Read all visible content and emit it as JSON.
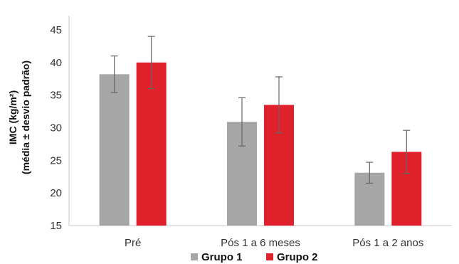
{
  "chart_data": {
    "type": "bar",
    "categories": [
      "Pré",
      "Pós 1 a 6 meses",
      "Pós 1 a 2 anos"
    ],
    "series": [
      {
        "name": "Grupo 1",
        "color": "#a6a6a6",
        "values": [
          38.2,
          30.9,
          23.1
        ],
        "error": [
          2.8,
          3.7,
          1.6
        ]
      },
      {
        "name": "Grupo 2",
        "color": "#e0202a",
        "values": [
          40.0,
          33.5,
          26.3
        ],
        "error": [
          4.0,
          4.3,
          3.3
        ]
      }
    ],
    "ylabel_line1": "IMC (kg/m²)",
    "ylabel_line2": "(média ± desvio padrão)",
    "ylim": [
      15,
      45
    ],
    "yticks": [
      15,
      20,
      25,
      30,
      35,
      40,
      45
    ],
    "grid": false,
    "legend_position": "bottom"
  }
}
